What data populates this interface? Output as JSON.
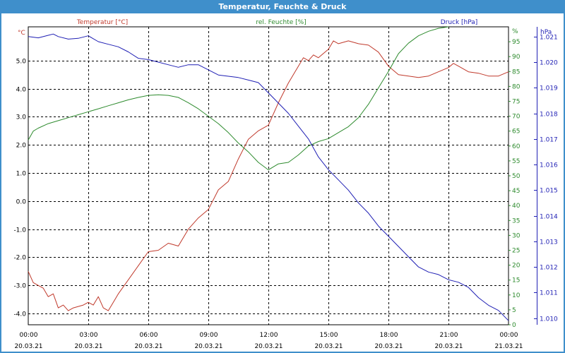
{
  "window": {
    "title": "Temperatur, Feuchte & Druck"
  },
  "colors": {
    "temperature": "#c0392b",
    "humidity": "#2e8b2e",
    "pressure": "#1f1fb4",
    "title_bar": "#3f8fcb",
    "grid": "#000000"
  },
  "chart_data": {
    "type": "line",
    "title": "Temperatur, Feuchte & Druck",
    "grid": true,
    "x_ticks": [
      {
        "time": "00:00",
        "date": "20.03.21"
      },
      {
        "time": "03:00",
        "date": "20.03.21"
      },
      {
        "time": "06:00",
        "date": "20.03.21"
      },
      {
        "time": "09:00",
        "date": "20.03.21"
      },
      {
        "time": "12:00",
        "date": "20.03.21"
      },
      {
        "time": "15:00",
        "date": "20.03.21"
      },
      {
        "time": "18:00",
        "date": "20.03.21"
      },
      {
        "time": "21:00",
        "date": "20.03.21"
      },
      {
        "time": "00:00",
        "date": "21.03.21"
      }
    ],
    "x_range_hours": [
      0,
      24
    ],
    "axes": {
      "temperature": {
        "label": "Temperatur [°C]",
        "unit": "°C",
        "ylim": [
          -4.4,
          6.2
        ],
        "ticks": [
          "5.0",
          "4.0",
          "3.0",
          "2.0",
          "1.0",
          "0.0",
          "-1.0",
          "-2.0",
          "-3.0",
          "-4.0"
        ]
      },
      "humidity": {
        "label": "rel. Feuchte [%]",
        "unit": "%",
        "ylim": [
          0,
          100
        ],
        "ticks": [
          "95",
          "90",
          "85",
          "80",
          "75",
          "70",
          "65",
          "60",
          "55",
          "50",
          "45",
          "40",
          "35",
          "30",
          "25",
          "20",
          "15",
          "10",
          "5",
          "0"
        ]
      },
      "pressure": {
        "label": "Druck [hPa]",
        "unit": "hPa",
        "ylim": [
          1.00974,
          1.02138
        ],
        "ticks": [
          "1.021",
          "1.020",
          "1.019",
          "1.018",
          "1.017",
          "1.016",
          "1.015",
          "1.014",
          "1.013",
          "1.012",
          "1.011",
          "1.010"
        ]
      }
    },
    "series": [
      {
        "name": "Temperatur [°C]",
        "axis": "temperature",
        "points": [
          [
            0,
            -2.5
          ],
          [
            0.25,
            -2.9
          ],
          [
            0.5,
            -3.0
          ],
          [
            0.75,
            -3.1
          ],
          [
            1.0,
            -3.4
          ],
          [
            1.25,
            -3.3
          ],
          [
            1.5,
            -3.8
          ],
          [
            1.75,
            -3.7
          ],
          [
            2.0,
            -3.9
          ],
          [
            2.25,
            -3.8
          ],
          [
            2.5,
            -3.75
          ],
          [
            2.75,
            -3.7
          ],
          [
            3.0,
            -3.6
          ],
          [
            3.25,
            -3.7
          ],
          [
            3.5,
            -3.4
          ],
          [
            3.75,
            -3.8
          ],
          [
            4.0,
            -3.9
          ],
          [
            4.25,
            -3.6
          ],
          [
            4.5,
            -3.3
          ],
          [
            5.0,
            -2.8
          ],
          [
            5.5,
            -2.3
          ],
          [
            6.0,
            -1.8
          ],
          [
            6.5,
            -1.75
          ],
          [
            7.0,
            -1.5
          ],
          [
            7.5,
            -1.6
          ],
          [
            8.0,
            -1.0
          ],
          [
            8.5,
            -0.6
          ],
          [
            9.0,
            -0.3
          ],
          [
            9.5,
            0.4
          ],
          [
            10.0,
            0.7
          ],
          [
            10.5,
            1.5
          ],
          [
            11.0,
            2.2
          ],
          [
            11.5,
            2.5
          ],
          [
            12.0,
            2.7
          ],
          [
            12.5,
            3.5
          ],
          [
            13.0,
            4.2
          ],
          [
            13.5,
            4.8
          ],
          [
            13.75,
            5.1
          ],
          [
            14.0,
            5.0
          ],
          [
            14.25,
            5.2
          ],
          [
            14.5,
            5.1
          ],
          [
            15.0,
            5.4
          ],
          [
            15.25,
            5.7
          ],
          [
            15.5,
            5.6
          ],
          [
            16.0,
            5.7
          ],
          [
            16.5,
            5.6
          ],
          [
            17.0,
            5.55
          ],
          [
            17.5,
            5.3
          ],
          [
            18.0,
            4.8
          ],
          [
            18.5,
            4.5
          ],
          [
            19.0,
            4.45
          ],
          [
            19.5,
            4.4
          ],
          [
            20.0,
            4.45
          ],
          [
            20.5,
            4.6
          ],
          [
            21.0,
            4.75
          ],
          [
            21.25,
            4.9
          ],
          [
            21.5,
            4.8
          ],
          [
            22.0,
            4.6
          ],
          [
            22.5,
            4.55
          ],
          [
            23.0,
            4.45
          ],
          [
            23.5,
            4.45
          ],
          [
            24.0,
            4.6
          ]
        ]
      },
      {
        "name": "rel. Feuchte [%]",
        "axis": "humidity",
        "points": [
          [
            0,
            62
          ],
          [
            0.25,
            65
          ],
          [
            0.5,
            66
          ],
          [
            1.0,
            67.5
          ],
          [
            1.5,
            68.5
          ],
          [
            2.0,
            69.5
          ],
          [
            2.5,
            70.5
          ],
          [
            3.0,
            71.5
          ],
          [
            3.5,
            72.5
          ],
          [
            4.0,
            73.5
          ],
          [
            4.5,
            74.5
          ],
          [
            5.0,
            75.5
          ],
          [
            5.5,
            76.3
          ],
          [
            6.0,
            77
          ],
          [
            6.5,
            77.2
          ],
          [
            7.0,
            77
          ],
          [
            7.5,
            76.3
          ],
          [
            8.0,
            74.5
          ],
          [
            8.5,
            72.5
          ],
          [
            9.0,
            70
          ],
          [
            9.5,
            67.5
          ],
          [
            10.0,
            64.5
          ],
          [
            10.5,
            61
          ],
          [
            11.0,
            58
          ],
          [
            11.5,
            54.5
          ],
          [
            12.0,
            52
          ],
          [
            12.5,
            54
          ],
          [
            13.0,
            54.5
          ],
          [
            13.5,
            57
          ],
          [
            14.0,
            60
          ],
          [
            14.5,
            61.5
          ],
          [
            15.0,
            62.5
          ],
          [
            15.5,
            64.5
          ],
          [
            16.0,
            66.5
          ],
          [
            16.5,
            69.5
          ],
          [
            17.0,
            74
          ],
          [
            17.5,
            79.5
          ],
          [
            18.0,
            85
          ],
          [
            18.5,
            91
          ],
          [
            19.0,
            94.5
          ],
          [
            19.5,
            97
          ],
          [
            20.0,
            98.5
          ],
          [
            20.5,
            99.5
          ],
          [
            21.0,
            100
          ]
        ]
      },
      {
        "name": "Druck [hPa]",
        "axis": "pressure",
        "points": [
          [
            0,
            1.021
          ],
          [
            0.5,
            1.02095
          ],
          [
            1.0,
            1.02105
          ],
          [
            1.25,
            1.0211
          ],
          [
            1.5,
            1.021
          ],
          [
            2.0,
            1.0209
          ],
          [
            2.5,
            1.02093
          ],
          [
            3.0,
            1.02103
          ],
          [
            3.5,
            1.0208
          ],
          [
            4.0,
            1.0207
          ],
          [
            4.5,
            1.0206
          ],
          [
            5.0,
            1.0204
          ],
          [
            5.5,
            1.02015
          ],
          [
            6.0,
            1.0201
          ],
          [
            6.5,
            1.02
          ],
          [
            7.0,
            1.0199
          ],
          [
            7.5,
            1.0198
          ],
          [
            8.0,
            1.0199
          ],
          [
            8.5,
            1.0199
          ],
          [
            9.0,
            1.0197
          ],
          [
            9.5,
            1.0195
          ],
          [
            10.0,
            1.01945
          ],
          [
            10.5,
            1.0194
          ],
          [
            11.0,
            1.0193
          ],
          [
            11.5,
            1.0192
          ],
          [
            12.0,
            1.0188
          ],
          [
            12.5,
            1.0184
          ],
          [
            13.0,
            1.018
          ],
          [
            13.5,
            1.0175
          ],
          [
            14.0,
            1.017
          ],
          [
            14.5,
            1.0163
          ],
          [
            15.0,
            1.0158
          ],
          [
            15.5,
            1.0154
          ],
          [
            16.0,
            1.015
          ],
          [
            16.5,
            1.0145
          ],
          [
            17.0,
            1.0141
          ],
          [
            17.5,
            1.0136
          ],
          [
            18.0,
            1.0132
          ],
          [
            18.5,
            1.0128
          ],
          [
            19.0,
            1.0124
          ],
          [
            19.5,
            1.012
          ],
          [
            20.0,
            1.0118
          ],
          [
            20.5,
            1.0117
          ],
          [
            21.0,
            1.0115
          ],
          [
            21.5,
            1.0114
          ],
          [
            22.0,
            1.0112
          ],
          [
            22.5,
            1.0108
          ],
          [
            23.0,
            1.0105
          ],
          [
            23.5,
            1.0103
          ],
          [
            24.0,
            1.0099
          ]
        ]
      }
    ]
  }
}
